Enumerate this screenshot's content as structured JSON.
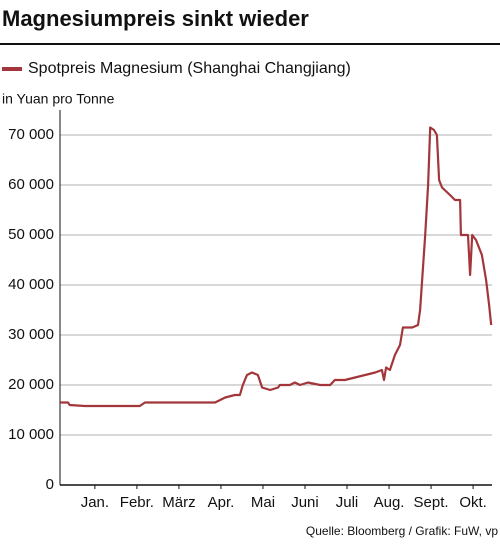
{
  "chart_data": {
    "type": "line",
    "title": "Magnesiumpreis sinkt wieder",
    "y_label": "in Yuan pro Tonne",
    "source": "Quelle: Bloomberg / Grafik: FuW, vp",
    "x": [
      -0.33,
      -0.14,
      -0.1,
      0.26,
      0.62,
      1.57,
      1.69,
      2.52,
      3.36,
      3.6,
      3.83,
      3.95,
      4.02,
      4.12,
      4.24,
      4.38,
      4.48,
      4.67,
      4.86,
      4.9,
      5.14,
      5.26,
      5.38,
      5.57,
      5.86,
      6.1,
      6.21,
      6.45,
      6.69,
      6.93,
      7.17,
      7.33,
      7.38,
      7.43,
      7.52,
      7.64,
      7.76,
      7.83,
      8.05,
      8.19,
      8.24,
      8.36,
      8.43,
      8.48,
      8.57,
      8.64,
      8.69,
      8.76,
      8.95,
      9.07,
      9.19,
      9.21,
      9.38,
      9.43,
      9.48,
      9.57,
      9.71,
      9.81,
      9.88,
      9.93
    ],
    "series": [
      {
        "name": "Spotpreis Magnesium (Shanghai Changjiang)",
        "color": "#a3363a",
        "values": [
          16500,
          16500,
          16000,
          15800,
          15800,
          15800,
          16500,
          16500,
          16500,
          17500,
          18000,
          18000,
          20000,
          22000,
          22500,
          22000,
          19500,
          19000,
          19500,
          20000,
          20000,
          20500,
          20000,
          20500,
          20000,
          20000,
          21000,
          21000,
          21500,
          22000,
          22500,
          23000,
          21000,
          23500,
          23000,
          26000,
          28000,
          31500,
          31500,
          32000,
          35000,
          50000,
          60000,
          71500,
          71000,
          70000,
          61000,
          59500,
          58000,
          57000,
          57000,
          50000,
          50000,
          42000,
          50000,
          49000,
          46000,
          41000,
          36000,
          32000
        ]
      }
    ],
    "xlim": [
      -0.33,
      9.95
    ],
    "xticks": [
      {
        "value": 0.5,
        "label": "Jan."
      },
      {
        "value": 1.5,
        "label": "Febr."
      },
      {
        "value": 2.5,
        "label": "März"
      },
      {
        "value": 3.5,
        "label": "Apr."
      },
      {
        "value": 4.5,
        "label": "Mai"
      },
      {
        "value": 5.5,
        "label": "Juni"
      },
      {
        "value": 6.5,
        "label": "Juli"
      },
      {
        "value": 7.5,
        "label": "Aug."
      },
      {
        "value": 8.5,
        "label": "Sept."
      },
      {
        "value": 9.5,
        "label": "Okt."
      }
    ],
    "ylim": [
      0,
      75000
    ],
    "yticks": [
      0,
      {
        "value": 10000,
        "label": "10 000"
      },
      {
        "value": 20000,
        "label": "20 000"
      },
      {
        "value": 30000,
        "label": "30 000"
      },
      {
        "value": 40000,
        "label": "40 000"
      },
      {
        "value": 50000,
        "label": "50 000"
      },
      {
        "value": 60000,
        "label": "60 000"
      },
      {
        "value": 70000,
        "label": "70 000"
      }
    ],
    "grid": true
  }
}
